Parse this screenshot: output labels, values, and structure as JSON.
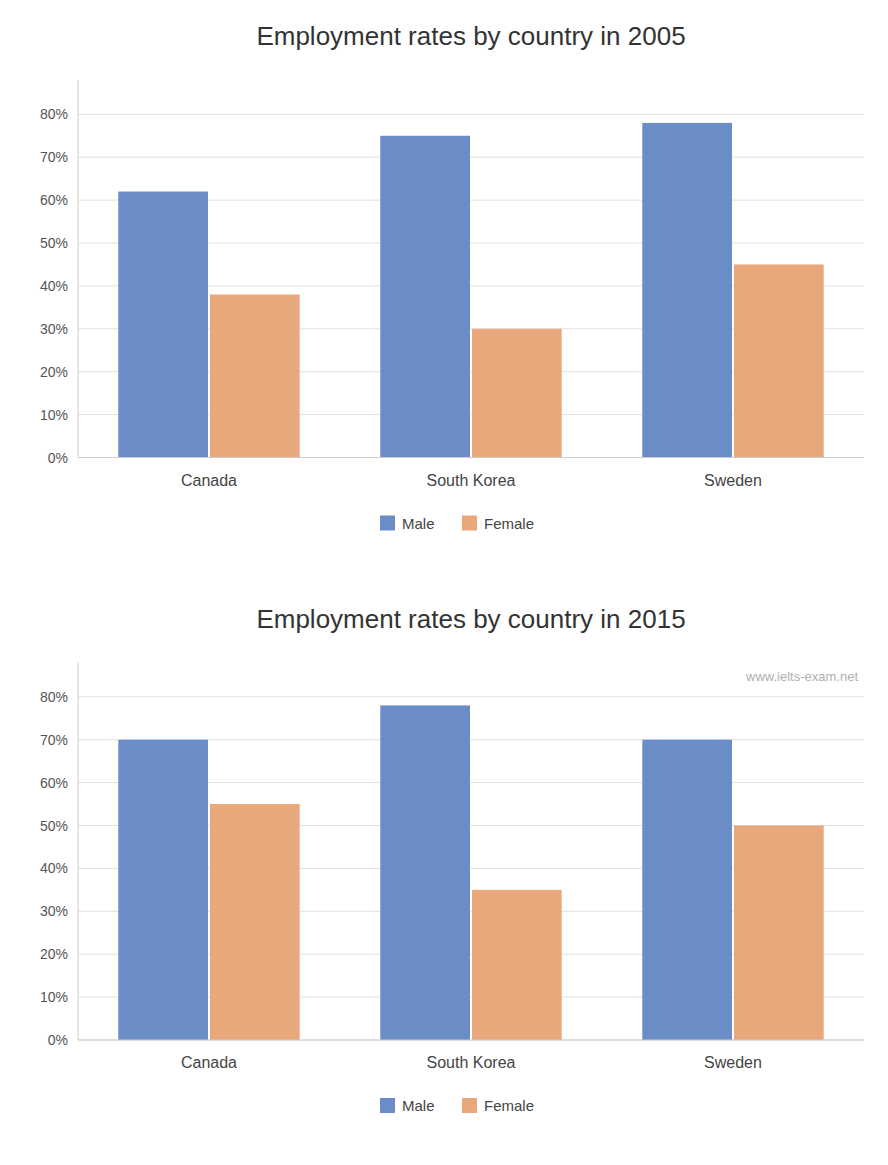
{
  "chart_data": [
    {
      "type": "bar",
      "title": "Employment rates by country in 2005",
      "categories": [
        "Canada",
        "South Korea",
        "Sweden"
      ],
      "series": [
        {
          "name": "Male",
          "color": "#6a8cc7",
          "values": [
            0.62,
            0.75,
            0.78
          ]
        },
        {
          "name": "Female",
          "color": "#e8a87c",
          "values": [
            0.38,
            0.3,
            0.45
          ]
        }
      ],
      "ylim": [
        0,
        0.88
      ],
      "yticks": [
        {
          "value": 0.0,
          "label": "0%"
        },
        {
          "value": 0.1,
          "label": "10%"
        },
        {
          "value": 0.2,
          "label": "20%"
        },
        {
          "value": 0.3,
          "label": "30%"
        },
        {
          "value": 0.4,
          "label": "40%"
        },
        {
          "value": 0.5,
          "label": "50%"
        },
        {
          "value": 0.6,
          "label": "60%"
        },
        {
          "value": 0.7,
          "label": "70%"
        },
        {
          "value": 0.8,
          "label": "80%"
        }
      ],
      "grid": true,
      "legend": "bottom"
    },
    {
      "type": "bar",
      "title": "Employment rates by country in 2015",
      "categories": [
        "Canada",
        "South Korea",
        "Sweden"
      ],
      "series": [
        {
          "name": "Male",
          "color": "#6a8cc7",
          "values": [
            0.7,
            0.78,
            0.7
          ]
        },
        {
          "name": "Female",
          "color": "#e8a87c",
          "values": [
            0.55,
            0.35,
            0.5
          ]
        }
      ],
      "ylim": [
        0,
        0.88
      ],
      "yticks": [
        {
          "value": 0.0,
          "label": "0%"
        },
        {
          "value": 0.1,
          "label": "10%"
        },
        {
          "value": 0.2,
          "label": "20%"
        },
        {
          "value": 0.3,
          "label": "30%"
        },
        {
          "value": 0.4,
          "label": "40%"
        },
        {
          "value": 0.5,
          "label": "50%"
        },
        {
          "value": 0.6,
          "label": "60%"
        },
        {
          "value": 0.7,
          "label": "70%"
        },
        {
          "value": 0.8,
          "label": "80%"
        }
      ],
      "grid": true,
      "legend": "bottom",
      "annotations": [
        "www.ielts-exam.net"
      ]
    }
  ]
}
